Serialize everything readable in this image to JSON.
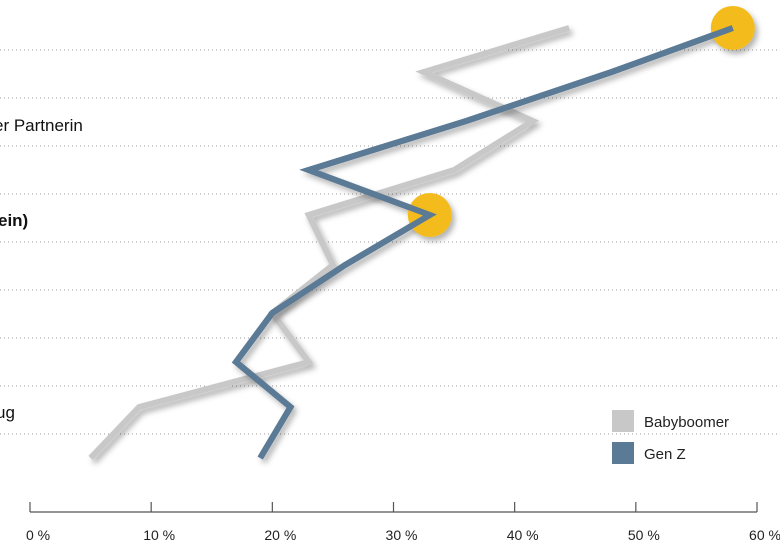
{
  "chart_data": {
    "type": "line",
    "orientation": "horizontal",
    "xlim": [
      0,
      60
    ],
    "x_ticks": [
      "0 %",
      "10 %",
      "20 %",
      "30 %",
      "40 %",
      "50 %",
      "60 %"
    ],
    "category_labels": [
      {
        "text": "er Partnerin",
        "row": 2,
        "bold": false
      },
      {
        "text": "ein)",
        "row": 4,
        "bold": true
      },
      {
        "text": "ug",
        "row": 8,
        "bold": false
      }
    ],
    "rows": 10,
    "series": [
      {
        "name": "Babyboomer",
        "color": "#c8c8c8",
        "values": [
          44.5,
          32.5,
          41.5,
          35,
          23,
          25,
          20,
          23,
          9,
          5
        ]
      },
      {
        "name": "Gen Z",
        "color": "#5b7a96",
        "values": [
          58,
          48,
          36,
          23,
          33,
          26,
          20,
          17,
          21.5,
          19
        ]
      }
    ],
    "highlight_points": [
      {
        "series": "Gen Z",
        "row": 0,
        "value": 58,
        "color": "#f3bb1c"
      },
      {
        "series": "Gen Z",
        "row": 4,
        "value": 33,
        "color": "#f3bb1c"
      }
    ],
    "grid": true,
    "legend_position": "bottom-right"
  }
}
